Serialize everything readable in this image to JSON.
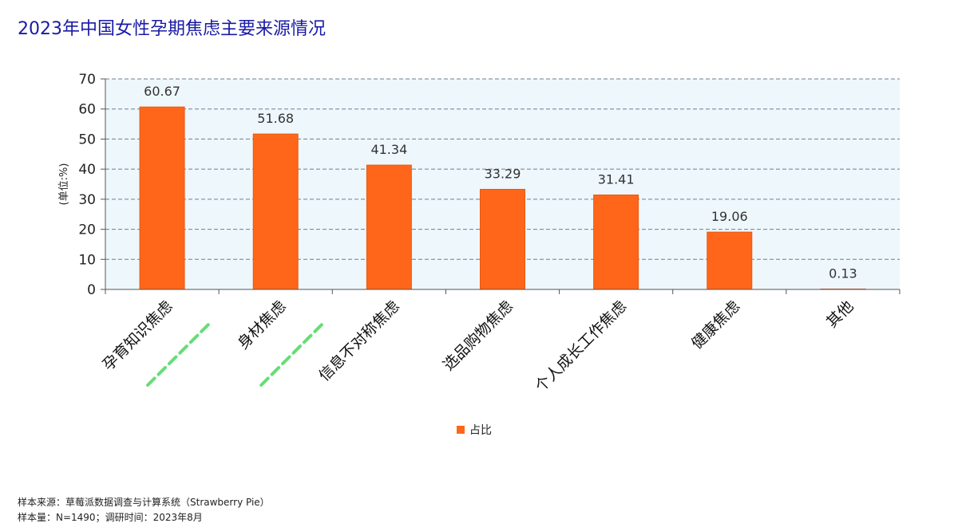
{
  "chart_data": {
    "type": "bar",
    "title": "2023年中国女性孕期焦虑主要来源情况",
    "categories": [
      "孕育知识焦虑",
      "身材焦虑",
      "信息不对称焦虑",
      "选品购物焦虑",
      "个人成长工作焦虑",
      "健康焦虑",
      "其他"
    ],
    "series": [
      {
        "name": "占比",
        "values": [
          60.67,
          51.68,
          41.34,
          33.29,
          31.41,
          19.06,
          0.13
        ]
      }
    ],
    "value_labels": [
      "60.67",
      "51.68",
      "41.34",
      "33.29",
      "31.41",
      "19.06",
      "0.13"
    ],
    "xlabel": "",
    "ylabel": "(单位:%)",
    "ylim": [
      0,
      70
    ],
    "yticks": [
      0,
      10,
      20,
      30,
      40,
      50,
      60,
      70
    ],
    "grid": true,
    "legend_position": "bottom-center",
    "highlighted_categories": [
      "孕育知识焦虑",
      "身材焦虑"
    ]
  },
  "colors": {
    "bar": "#ff6619",
    "bar_edge": "#e65a12",
    "plot_background": "#eef7fc",
    "grid": "#6f7f8f",
    "title": "#1a1aa6",
    "highlight": "#66dd77",
    "text": "#222222"
  },
  "footer": {
    "source": "样本来源：草莓派数据调查与计算系统（Strawberry Pie）",
    "sample": "样本量：N=1490；调研时间：2023年8月"
  }
}
